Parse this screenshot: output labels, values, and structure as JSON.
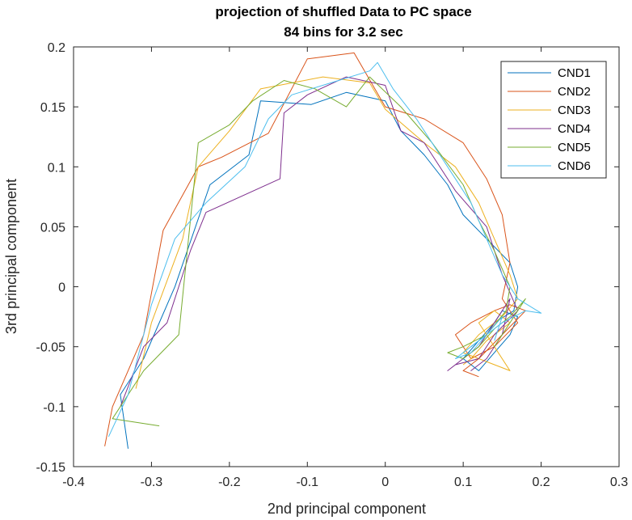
{
  "chart_data": {
    "type": "line",
    "title": "projection of shuffled Data to PC space",
    "subtitle": "84 bins for 3.2 sec",
    "xlabel": "2nd principal component",
    "ylabel": "3rd principal component",
    "xlim": [
      -0.4,
      0.3
    ],
    "ylim": [
      -0.15,
      0.2
    ],
    "xticks": [
      -0.4,
      -0.3,
      -0.2,
      -0.1,
      0,
      0.1,
      0.2,
      0.3
    ],
    "yticks": [
      -0.15,
      -0.1,
      -0.05,
      0,
      0.05,
      0.1,
      0.15,
      0.2
    ],
    "xtick_labels": [
      "-0.4",
      "-0.3",
      "-0.2",
      "-0.1",
      "0",
      "0.1",
      "0.2",
      "0.3"
    ],
    "ytick_labels": [
      "-0.15",
      "-0.1",
      "-0.05",
      "0",
      "0.05",
      "0.1",
      "0.15",
      "0.2"
    ],
    "grid": false,
    "legend_position": "top-right",
    "series": [
      {
        "name": "CND1",
        "color": "#0072BD",
        "points": [
          [
            -0.33,
            -0.135
          ],
          [
            -0.34,
            -0.09
          ],
          [
            -0.31,
            -0.06
          ],
          [
            -0.27,
            0.0
          ],
          [
            -0.225,
            0.085
          ],
          [
            -0.175,
            0.11
          ],
          [
            -0.16,
            0.155
          ],
          [
            -0.095,
            0.152
          ],
          [
            -0.05,
            0.162
          ],
          [
            0.0,
            0.155
          ],
          [
            0.02,
            0.13
          ],
          [
            0.05,
            0.11
          ],
          [
            0.08,
            0.085
          ],
          [
            0.1,
            0.06
          ],
          [
            0.13,
            0.04
          ],
          [
            0.16,
            0.02
          ],
          [
            0.17,
            0.0
          ],
          [
            0.165,
            -0.02
          ],
          [
            0.14,
            -0.03
          ],
          [
            0.12,
            -0.045
          ],
          [
            0.1,
            -0.06
          ],
          [
            0.12,
            -0.07
          ],
          [
            0.14,
            -0.055
          ],
          [
            0.16,
            -0.04
          ],
          [
            0.17,
            -0.025
          ],
          [
            0.15,
            -0.02
          ],
          [
            0.13,
            -0.04
          ],
          [
            0.11,
            -0.05
          ]
        ]
      },
      {
        "name": "CND2",
        "color": "#D95319",
        "points": [
          [
            -0.36,
            -0.133
          ],
          [
            -0.35,
            -0.1
          ],
          [
            -0.31,
            -0.04
          ],
          [
            -0.285,
            0.047
          ],
          [
            -0.24,
            0.1
          ],
          [
            -0.21,
            0.108
          ],
          [
            -0.15,
            0.128
          ],
          [
            -0.1,
            0.19
          ],
          [
            -0.04,
            0.195
          ],
          [
            0.0,
            0.15
          ],
          [
            0.05,
            0.14
          ],
          [
            0.1,
            0.12
          ],
          [
            0.13,
            0.09
          ],
          [
            0.15,
            0.06
          ],
          [
            0.16,
            0.02
          ],
          [
            0.15,
            -0.01
          ],
          [
            0.17,
            -0.03
          ],
          [
            0.14,
            -0.05
          ],
          [
            0.11,
            -0.06
          ],
          [
            0.09,
            -0.04
          ],
          [
            0.11,
            -0.03
          ],
          [
            0.14,
            -0.02
          ],
          [
            0.16,
            -0.015
          ],
          [
            0.18,
            -0.02
          ],
          [
            0.15,
            -0.04
          ],
          [
            0.12,
            -0.06
          ],
          [
            0.1,
            -0.07
          ],
          [
            0.12,
            -0.075
          ]
        ]
      },
      {
        "name": "CND3",
        "color": "#EDB120",
        "points": [
          [
            -0.32,
            -0.085
          ],
          [
            -0.3,
            -0.03
          ],
          [
            -0.26,
            0.04
          ],
          [
            -0.24,
            0.1
          ],
          [
            -0.2,
            0.13
          ],
          [
            -0.16,
            0.165
          ],
          [
            -0.12,
            0.17
          ],
          [
            -0.08,
            0.175
          ],
          [
            -0.02,
            0.17
          ],
          [
            0.0,
            0.148
          ],
          [
            0.05,
            0.12
          ],
          [
            0.09,
            0.1
          ],
          [
            0.12,
            0.07
          ],
          [
            0.14,
            0.04
          ],
          [
            0.16,
            0.01
          ],
          [
            0.17,
            -0.01
          ],
          [
            0.15,
            -0.025
          ],
          [
            0.12,
            -0.04
          ],
          [
            0.1,
            -0.055
          ],
          [
            0.12,
            -0.06
          ],
          [
            0.16,
            -0.07
          ],
          [
            0.14,
            -0.05
          ],
          [
            0.12,
            -0.03
          ],
          [
            0.14,
            -0.02
          ],
          [
            0.16,
            -0.03
          ],
          [
            0.13,
            -0.045
          ],
          [
            0.11,
            -0.06
          ],
          [
            0.1,
            -0.065
          ]
        ]
      },
      {
        "name": "CND4",
        "color": "#7E2F8E",
        "points": [
          [
            -0.34,
            -0.1
          ],
          [
            -0.31,
            -0.05
          ],
          [
            -0.28,
            -0.03
          ],
          [
            -0.25,
            0.03
          ],
          [
            -0.23,
            0.062
          ],
          [
            -0.135,
            0.09
          ],
          [
            -0.13,
            0.145
          ],
          [
            -0.1,
            0.16
          ],
          [
            -0.05,
            0.175
          ],
          [
            0.0,
            0.168
          ],
          [
            0.02,
            0.13
          ],
          [
            0.05,
            0.12
          ],
          [
            0.09,
            0.08
          ],
          [
            0.13,
            0.05
          ],
          [
            0.15,
            0.01
          ],
          [
            0.17,
            -0.02
          ],
          [
            0.14,
            -0.04
          ],
          [
            0.12,
            -0.06
          ],
          [
            0.09,
            -0.065
          ],
          [
            0.08,
            -0.07
          ],
          [
            0.1,
            -0.06
          ],
          [
            0.12,
            -0.05
          ],
          [
            0.14,
            -0.03
          ],
          [
            0.16,
            -0.01
          ],
          [
            0.15,
            -0.04
          ],
          [
            0.13,
            -0.06
          ],
          [
            0.11,
            -0.07
          ],
          [
            0.12,
            -0.065
          ]
        ]
      },
      {
        "name": "CND5",
        "color": "#77AC30",
        "points": [
          [
            -0.29,
            -0.116
          ],
          [
            -0.35,
            -0.11
          ],
          [
            -0.31,
            -0.07
          ],
          [
            -0.265,
            -0.04
          ],
          [
            -0.24,
            0.12
          ],
          [
            -0.2,
            0.135
          ],
          [
            -0.17,
            0.155
          ],
          [
            -0.13,
            0.172
          ],
          [
            -0.09,
            0.165
          ],
          [
            -0.05,
            0.15
          ],
          [
            -0.02,
            0.175
          ],
          [
            0.02,
            0.15
          ],
          [
            0.06,
            0.12
          ],
          [
            0.1,
            0.085
          ],
          [
            0.12,
            0.055
          ],
          [
            0.14,
            0.03
          ],
          [
            0.16,
            0.0
          ],
          [
            0.155,
            -0.02
          ],
          [
            0.13,
            -0.04
          ],
          [
            0.1,
            -0.05
          ],
          [
            0.08,
            -0.055
          ],
          [
            0.1,
            -0.06
          ],
          [
            0.12,
            -0.05
          ],
          [
            0.14,
            -0.035
          ],
          [
            0.16,
            -0.025
          ],
          [
            0.18,
            -0.01
          ],
          [
            0.16,
            -0.03
          ],
          [
            0.14,
            -0.05
          ]
        ]
      },
      {
        "name": "CND6",
        "color": "#4DBEEE",
        "points": [
          [
            -0.355,
            -0.125
          ],
          [
            -0.33,
            -0.09
          ],
          [
            -0.3,
            -0.015
          ],
          [
            -0.27,
            0.04
          ],
          [
            -0.23,
            0.07
          ],
          [
            -0.18,
            0.1
          ],
          [
            -0.15,
            0.14
          ],
          [
            -0.12,
            0.16
          ],
          [
            -0.07,
            0.17
          ],
          [
            -0.02,
            0.18
          ],
          [
            -0.01,
            0.187
          ],
          [
            0.01,
            0.165
          ],
          [
            0.04,
            0.14
          ],
          [
            0.08,
            0.1
          ],
          [
            0.11,
            0.07
          ],
          [
            0.13,
            0.04
          ],
          [
            0.15,
            0.01
          ],
          [
            0.17,
            -0.01
          ],
          [
            0.2,
            -0.022
          ],
          [
            0.18,
            -0.02
          ],
          [
            0.15,
            -0.03
          ],
          [
            0.13,
            -0.04
          ],
          [
            0.11,
            -0.055
          ],
          [
            0.09,
            -0.06
          ],
          [
            0.11,
            -0.05
          ],
          [
            0.13,
            -0.04
          ],
          [
            0.15,
            -0.025
          ],
          [
            0.14,
            -0.045
          ]
        ]
      }
    ]
  }
}
